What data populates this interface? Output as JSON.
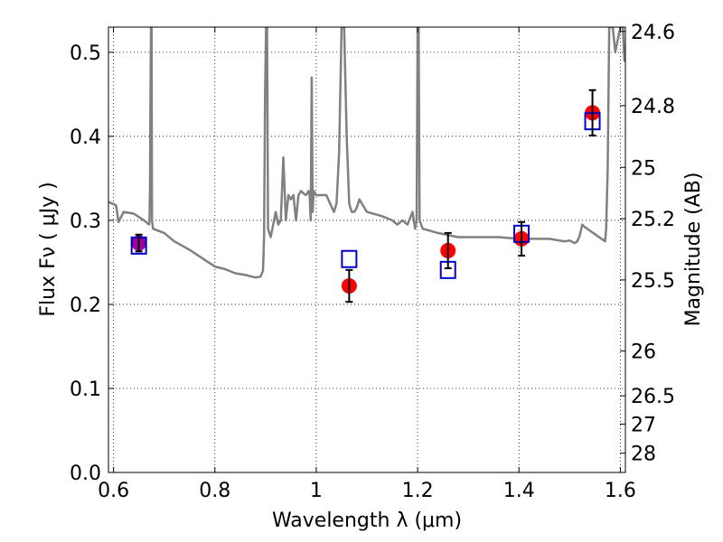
{
  "chart_data": {
    "type": "scatter",
    "xlabel": "Wavelength  λ (μm)",
    "ylabel": "Flux  Fν  ( μJy )",
    "ylabel_right": "Magnitude (AB)",
    "xlim": [
      0.59,
      1.61
    ],
    "ylim": [
      0.0,
      0.53
    ],
    "x_ticks": [
      0.6,
      0.8,
      1.0,
      1.2,
      1.4,
      1.6
    ],
    "x_tick_labels": [
      "0.6",
      "0.8",
      "1",
      "1.2",
      "1.4",
      "1.6"
    ],
    "y_ticks": [
      0.0,
      0.1,
      0.2,
      0.3,
      0.4,
      0.5
    ],
    "y_tick_labels": [
      "0.0",
      "0.1",
      "0.2",
      "0.3",
      "0.4",
      "0.5"
    ],
    "right_ticks": [
      {
        "mag": 24.6,
        "label": "24.6"
      },
      {
        "mag": 24.8,
        "label": "24.8"
      },
      {
        "mag": 25.0,
        "label": "25"
      },
      {
        "mag": 25.2,
        "label": "25.2"
      },
      {
        "mag": 25.5,
        "label": "25.5"
      },
      {
        "mag": 26.0,
        "label": "26"
      },
      {
        "mag": 26.5,
        "label": "26.5"
      },
      {
        "mag": 27.0,
        "label": "27"
      },
      {
        "mag": 28.0,
        "label": "28"
      }
    ],
    "grid": true,
    "colors": {
      "observed": "#ff0000",
      "model": "#0000cc",
      "spectrum": "#808080",
      "first_point_fill": "#9b009b"
    },
    "series": [
      {
        "kind": "observed",
        "x": [
          0.65,
          1.065,
          1.26,
          1.405,
          1.545
        ],
        "y": [
          0.273,
          0.222,
          0.264,
          0.278,
          0.428
        ],
        "yerr": [
          0.01,
          0.019,
          0.021,
          0.02,
          0.027
        ]
      },
      {
        "kind": "model",
        "x": [
          0.65,
          1.065,
          1.26,
          1.405,
          1.545
        ],
        "y": [
          0.27,
          0.254,
          0.241,
          0.284,
          0.418
        ]
      },
      {
        "kind": "spectrum",
        "x": [
          0.59,
          0.605,
          0.61,
          0.62,
          0.64,
          0.66,
          0.67,
          0.671,
          0.672,
          0.673,
          0.674,
          0.675,
          0.676,
          0.678,
          0.7,
          0.72,
          0.75,
          0.78,
          0.8,
          0.82,
          0.84,
          0.86,
          0.88,
          0.89,
          0.895,
          0.897,
          0.899,
          0.901,
          0.903,
          0.905,
          0.91,
          0.92,
          0.925,
          0.93,
          0.935,
          0.94,
          0.945,
          0.95,
          0.955,
          0.96,
          0.965,
          0.97,
          0.975,
          0.98,
          0.985,
          0.987,
          0.989,
          0.991,
          0.993,
          0.995,
          1.0,
          1.02,
          1.035,
          1.04,
          1.045,
          1.05,
          1.055,
          1.06,
          1.065,
          1.07,
          1.075,
          1.08,
          1.085,
          1.1,
          1.13,
          1.15,
          1.16,
          1.17,
          1.18,
          1.19,
          1.195,
          1.198,
          1.2,
          1.202,
          1.204,
          1.21,
          1.24,
          1.28,
          1.32,
          1.36,
          1.4,
          1.43,
          1.46,
          1.49,
          1.5,
          1.51,
          1.515,
          1.52,
          1.525,
          1.53,
          1.57,
          1.572,
          1.575,
          1.578,
          1.585,
          1.59,
          1.6,
          1.605,
          1.608,
          1.61
        ],
        "y": [
          0.322,
          0.318,
          0.298,
          0.31,
          0.308,
          0.3,
          0.295,
          0.298,
          0.34,
          0.45,
          0.53,
          0.53,
          0.3,
          0.29,
          0.285,
          0.275,
          0.265,
          0.253,
          0.245,
          0.242,
          0.237,
          0.235,
          0.232,
          0.233,
          0.24,
          0.28,
          0.45,
          0.53,
          0.53,
          0.29,
          0.28,
          0.31,
          0.295,
          0.3,
          0.375,
          0.3,
          0.33,
          0.325,
          0.33,
          0.3,
          0.33,
          0.335,
          0.332,
          0.33,
          0.335,
          0.33,
          0.3,
          0.47,
          0.31,
          0.335,
          0.33,
          0.33,
          0.31,
          0.32,
          0.38,
          0.53,
          0.53,
          0.4,
          0.32,
          0.31,
          0.31,
          0.315,
          0.325,
          0.31,
          0.305,
          0.3,
          0.295,
          0.3,
          0.295,
          0.31,
          0.29,
          0.3,
          0.53,
          0.53,
          0.3,
          0.29,
          0.285,
          0.28,
          0.28,
          0.28,
          0.278,
          0.278,
          0.278,
          0.275,
          0.276,
          0.273,
          0.275,
          0.282,
          0.295,
          0.292,
          0.275,
          0.29,
          0.36,
          0.53,
          0.53,
          0.5,
          0.53,
          0.53,
          0.49,
          0.5
        ]
      }
    ]
  }
}
